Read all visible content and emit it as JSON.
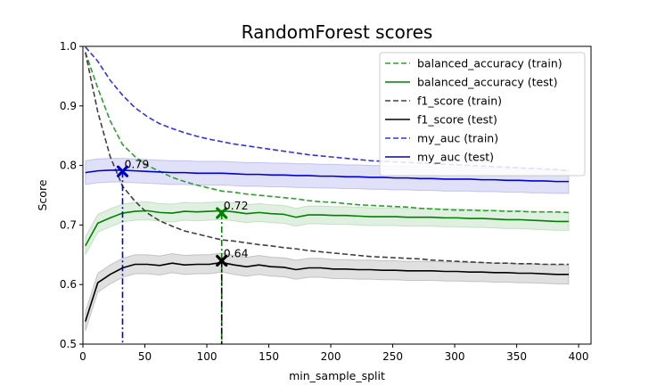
{
  "chart_data": {
    "type": "line",
    "title": "RandomForest scores",
    "xlabel": "min_sample_split",
    "ylabel": "Score",
    "xlim": [
      0,
      410
    ],
    "ylim": [
      0.5,
      1.0
    ],
    "xticks": [
      0,
      50,
      100,
      150,
      200,
      250,
      300,
      350,
      400
    ],
    "yticks": [
      0.5,
      0.6,
      0.7,
      0.8,
      0.9,
      1.0
    ],
    "ytick_labels": [
      "0.5",
      "0.6",
      "0.7",
      "0.8",
      "0.9",
      "1.0"
    ],
    "grid": false,
    "legend": "upper-right",
    "x": [
      2,
      12,
      22,
      32,
      42,
      52,
      62,
      72,
      82,
      92,
      102,
      112,
      122,
      132,
      142,
      152,
      162,
      172,
      182,
      192,
      202,
      212,
      222,
      232,
      242,
      252,
      262,
      272,
      282,
      292,
      302,
      312,
      322,
      332,
      342,
      352,
      362,
      372,
      382,
      392
    ],
    "series": [
      {
        "name": "balanced_accuracy (train)",
        "color": "#2ca02c",
        "dash": true,
        "values": [
          0.99,
          0.93,
          0.875,
          0.835,
          0.815,
          0.8,
          0.79,
          0.78,
          0.773,
          0.767,
          0.762,
          0.757,
          0.755,
          0.752,
          0.75,
          0.748,
          0.746,
          0.744,
          0.741,
          0.739,
          0.738,
          0.736,
          0.734,
          0.733,
          0.732,
          0.731,
          0.73,
          0.728,
          0.727,
          0.726,
          0.725,
          0.725,
          0.724,
          0.724,
          0.723,
          0.723,
          0.722,
          0.722,
          0.722,
          0.721
        ]
      },
      {
        "name": "balanced_accuracy (test)",
        "color": "#008000",
        "dash": false,
        "band": 0.015,
        "values": [
          0.665,
          0.703,
          0.712,
          0.72,
          0.723,
          0.724,
          0.721,
          0.72,
          0.723,
          0.722,
          0.723,
          0.724,
          0.722,
          0.719,
          0.721,
          0.719,
          0.718,
          0.713,
          0.717,
          0.717,
          0.716,
          0.716,
          0.715,
          0.714,
          0.714,
          0.714,
          0.713,
          0.713,
          0.713,
          0.712,
          0.712,
          0.711,
          0.711,
          0.71,
          0.709,
          0.709,
          0.708,
          0.707,
          0.706,
          0.706
        ]
      },
      {
        "name": "f1_score (train)",
        "color": "#404040",
        "dash": true,
        "values": [
          0.99,
          0.89,
          0.815,
          0.765,
          0.74,
          0.72,
          0.707,
          0.698,
          0.69,
          0.685,
          0.68,
          0.675,
          0.673,
          0.67,
          0.667,
          0.665,
          0.662,
          0.66,
          0.657,
          0.655,
          0.653,
          0.651,
          0.649,
          0.647,
          0.646,
          0.645,
          0.644,
          0.643,
          0.641,
          0.64,
          0.639,
          0.638,
          0.637,
          0.636,
          0.636,
          0.635,
          0.635,
          0.634,
          0.634,
          0.634
        ]
      },
      {
        "name": "f1_score (test)",
        "color": "#000000",
        "dash": false,
        "band": 0.016,
        "values": [
          0.538,
          0.603,
          0.617,
          0.628,
          0.634,
          0.634,
          0.632,
          0.636,
          0.633,
          0.634,
          0.634,
          0.637,
          0.633,
          0.63,
          0.633,
          0.63,
          0.629,
          0.625,
          0.628,
          0.628,
          0.626,
          0.626,
          0.625,
          0.625,
          0.624,
          0.624,
          0.623,
          0.623,
          0.623,
          0.622,
          0.622,
          0.621,
          0.621,
          0.62,
          0.62,
          0.619,
          0.619,
          0.618,
          0.617,
          0.617
        ]
      },
      {
        "name": "my_auc (train)",
        "color": "#3333dd",
        "dash": true,
        "values": [
          0.999,
          0.975,
          0.943,
          0.918,
          0.897,
          0.882,
          0.87,
          0.862,
          0.855,
          0.849,
          0.844,
          0.84,
          0.836,
          0.833,
          0.83,
          0.827,
          0.824,
          0.821,
          0.818,
          0.816,
          0.814,
          0.812,
          0.81,
          0.808,
          0.807,
          0.806,
          0.805,
          0.804,
          0.803,
          0.802,
          0.801,
          0.8,
          0.799,
          0.798,
          0.797,
          0.796,
          0.795,
          0.794,
          0.793,
          0.791
        ]
      },
      {
        "name": "my_auc (test)",
        "color": "#0000cc",
        "dash": false,
        "band": 0.02,
        "values": [
          0.788,
          0.791,
          0.792,
          0.792,
          0.791,
          0.79,
          0.789,
          0.788,
          0.788,
          0.787,
          0.787,
          0.787,
          0.786,
          0.785,
          0.785,
          0.784,
          0.784,
          0.783,
          0.783,
          0.782,
          0.782,
          0.781,
          0.781,
          0.78,
          0.78,
          0.779,
          0.779,
          0.778,
          0.778,
          0.777,
          0.777,
          0.777,
          0.776,
          0.776,
          0.775,
          0.775,
          0.774,
          0.774,
          0.773,
          0.773
        ]
      }
    ],
    "markers": [
      {
        "x": 32,
        "y": 0.79,
        "label": "0.79",
        "color": "#0000cc"
      },
      {
        "x": 112,
        "y": 0.72,
        "label": "0.72",
        "color": "#008000"
      },
      {
        "x": 112,
        "y": 0.64,
        "label": "0.64",
        "color": "#000000"
      }
    ]
  }
}
